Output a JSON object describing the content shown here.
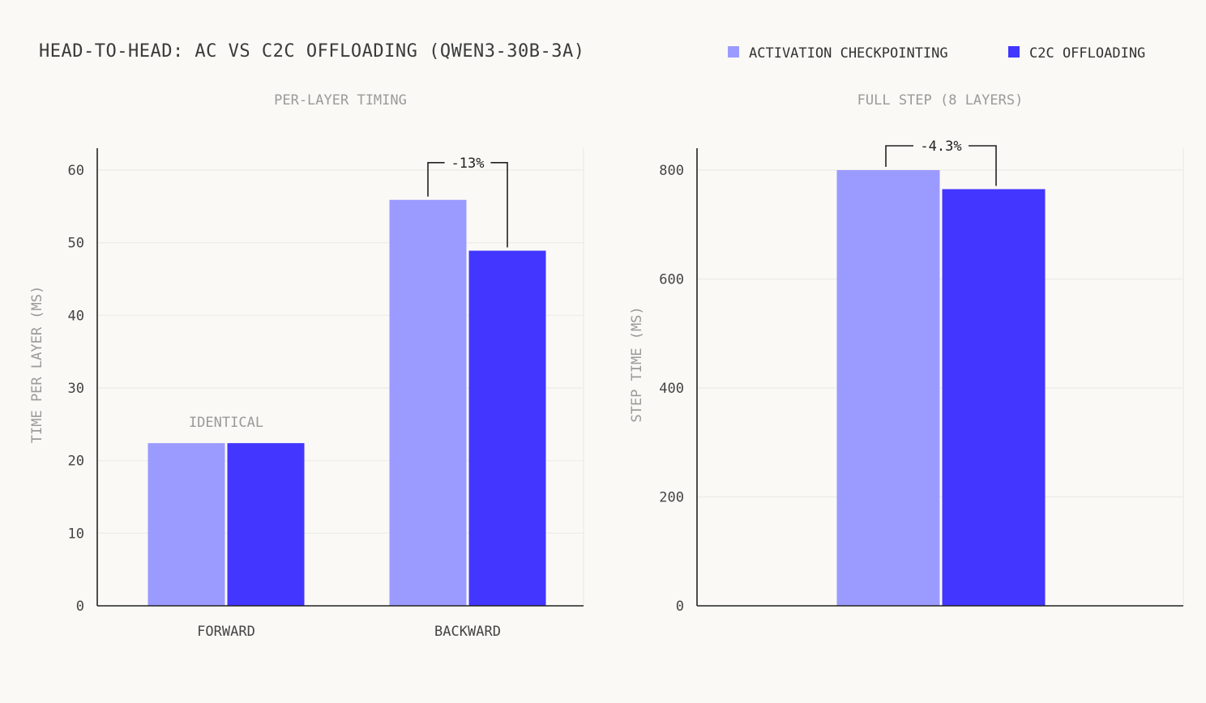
{
  "title": "HEAD-TO-HEAD: AC VS C2C OFFLOADING (QWEN3-30B-3A)",
  "legend": [
    {
      "label": "ACTIVATION CHECKPOINTING",
      "color": "#9b9bff"
    },
    {
      "label": "C2C OFFLOADING",
      "color": "#4236ff"
    }
  ],
  "colors": {
    "axis": "#222222",
    "grid": "#ecebe6",
    "muted": "#9a9a9a",
    "tick": "#444444"
  },
  "chart_data": [
    {
      "type": "bar",
      "title": "PER-LAYER TIMING",
      "ylabel": "TIME PER LAYER (MS)",
      "categories": [
        "FORWARD",
        "BACKWARD"
      ],
      "series": [
        {
          "name": "ACTIVATION CHECKPOINTING",
          "values": [
            22.4,
            55.9
          ]
        },
        {
          "name": "C2C OFFLOADING",
          "values": [
            22.4,
            48.9
          ]
        }
      ],
      "ylim": [
        0,
        60
      ],
      "yticks": [
        0,
        10,
        20,
        30,
        40,
        50,
        60
      ],
      "grid": true,
      "annotations": [
        {
          "category": "FORWARD",
          "text": "IDENTICAL",
          "kind": "label"
        },
        {
          "category": "BACKWARD",
          "text": "-13%",
          "kind": "bracket"
        }
      ]
    },
    {
      "type": "bar",
      "title": "FULL STEP (8 LAYERS)",
      "ylabel": "STEP TIME (MS)",
      "categories": [
        ""
      ],
      "series": [
        {
          "name": "ACTIVATION CHECKPOINTING",
          "values": [
            800
          ]
        },
        {
          "name": "C2C OFFLOADING",
          "values": [
            765
          ]
        }
      ],
      "ylim": [
        0,
        800
      ],
      "yticks": [
        0,
        200,
        400,
        600,
        800
      ],
      "grid": true,
      "annotations": [
        {
          "category": "",
          "text": "-4.3%",
          "kind": "bracket"
        }
      ]
    }
  ]
}
